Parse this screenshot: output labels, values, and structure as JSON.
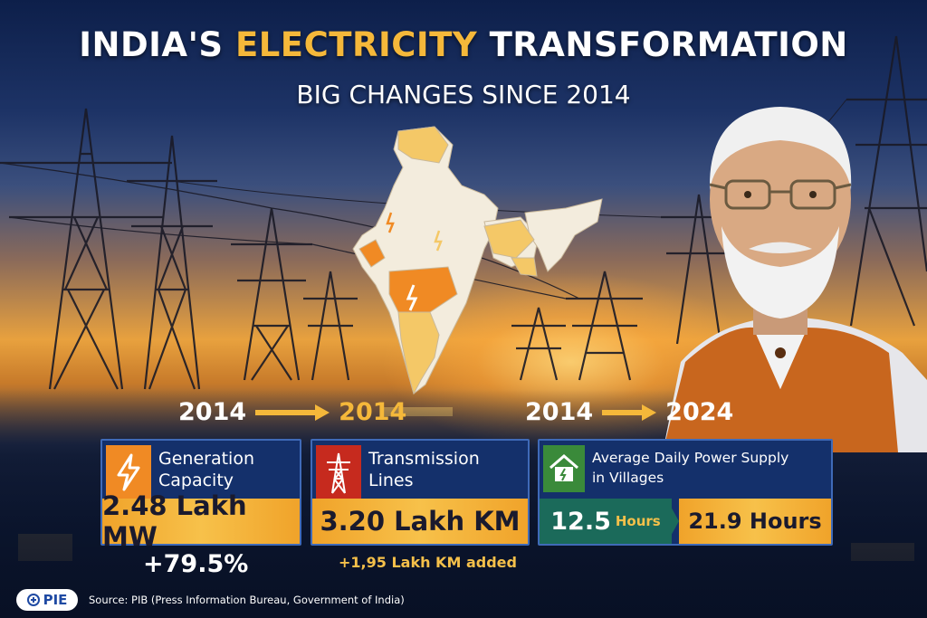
{
  "header": {
    "title_before": "INDIA'S",
    "title_highlight": "ELECTRICITY",
    "title_after": "TRANSFORMATION",
    "subtitle": "BIG CHANGES SINCE 2014"
  },
  "colors": {
    "accent": "#f5b83a",
    "card_bg": "#14306b",
    "card_border": "#3f6ab8",
    "value_bar": "#f7c14a",
    "green_bar": "#1b6a5a"
  },
  "sections": [
    {
      "year_from": "2014",
      "year_to": "2014",
      "label_line1": "Generation",
      "label_line2": "Capacity",
      "icon": "lightning-icon",
      "value": "2.48 Lakh MW",
      "note": "+79.5%"
    },
    {
      "label_line1": "Transmission",
      "label_line2": "Lines",
      "icon": "transmission-tower-icon",
      "value": "3.20 Lakh KM",
      "note": "+1,95 Lakh KM added"
    },
    {
      "year_from": "2014",
      "year_to": "2024",
      "label_line1": "Average Daily Power Supply",
      "label_line2": "in Villages",
      "icon": "village-house-icon",
      "value_from": "12.5",
      "value_from_unit": "Hours",
      "value_to": "21.9 Hours"
    }
  ],
  "footer": {
    "logo": "PIE",
    "source": "Source: PIB (Press Information Bureau, Government of India)"
  }
}
